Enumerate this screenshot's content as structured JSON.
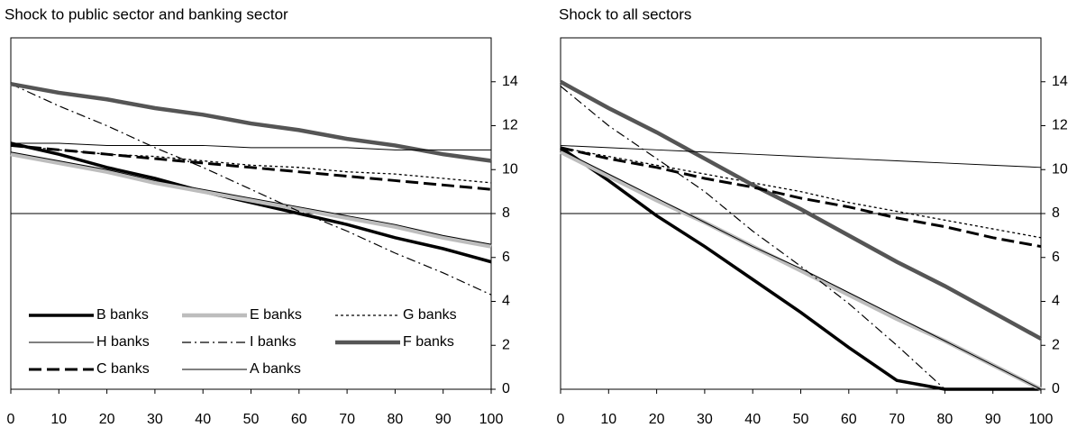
{
  "chart_data": [
    {
      "type": "line",
      "title": "Shock to public sector and banking sector",
      "x": [
        0,
        10,
        20,
        30,
        40,
        50,
        60,
        70,
        80,
        90,
        100
      ],
      "xlim": [
        0,
        100
      ],
      "xticks": [
        0,
        10,
        20,
        30,
        40,
        50,
        60,
        70,
        80,
        90,
        100
      ],
      "ylim": [
        0,
        16
      ],
      "yticks": [
        0,
        2,
        4,
        6,
        8,
        10,
        12,
        14
      ],
      "hline": 8,
      "legend": "lower left",
      "series": [
        {
          "name": "B banks",
          "color": "#000000",
          "width": 3.5,
          "dash": "",
          "values": [
            11.2,
            10.7,
            10.1,
            9.6,
            9.0,
            8.5,
            8.0,
            7.5,
            6.9,
            6.4,
            5.8
          ]
        },
        {
          "name": "E banks",
          "color": "#bdbdbd",
          "width": 4.5,
          "dash": "",
          "values": [
            10.7,
            10.3,
            9.9,
            9.4,
            9.0,
            8.6,
            8.2,
            7.8,
            7.4,
            6.9,
            6.5
          ]
        },
        {
          "name": "G banks",
          "color": "#000000",
          "width": 1.3,
          "dash": "3 3",
          "values": [
            11.1,
            10.9,
            10.7,
            10.6,
            10.4,
            10.2,
            10.1,
            9.9,
            9.8,
            9.6,
            9.4
          ]
        },
        {
          "name": "H banks",
          "color": "#000000",
          "width": 1,
          "dash": "",
          "values": [
            10.8,
            10.4,
            10.0,
            9.5,
            9.1,
            8.7,
            8.3,
            7.9,
            7.5,
            7.0,
            6.6
          ]
        },
        {
          "name": "I banks",
          "color": "#000000",
          "width": 1.2,
          "dash": "10 4 2 4",
          "values": [
            13.9,
            12.9,
            12.0,
            11.0,
            10.1,
            9.1,
            8.1,
            7.2,
            6.2,
            5.3,
            4.3
          ]
        },
        {
          "name": "F banks",
          "color": "#555555",
          "width": 4.5,
          "dash": "",
          "values": [
            13.9,
            13.5,
            13.2,
            12.8,
            12.5,
            12.1,
            11.8,
            11.4,
            11.1,
            10.7,
            10.4
          ]
        },
        {
          "name": "C banks",
          "color": "#000000",
          "width": 3,
          "dash": "14 6",
          "values": [
            11.1,
            10.9,
            10.7,
            10.5,
            10.3,
            10.1,
            9.9,
            9.7,
            9.5,
            9.3,
            9.1
          ]
        },
        {
          "name": "A banks",
          "color": "#000000",
          "width": 1,
          "dash": "",
          "values": [
            11.2,
            11.2,
            11.1,
            11.1,
            11.1,
            11.0,
            11.0,
            11.0,
            10.9,
            10.9,
            10.9
          ]
        }
      ]
    },
    {
      "type": "line",
      "title": "Shock to all sectors",
      "x": [
        0,
        10,
        20,
        30,
        40,
        50,
        60,
        70,
        80,
        90,
        100
      ],
      "xlim": [
        0,
        100
      ],
      "xticks": [
        0,
        10,
        20,
        30,
        40,
        50,
        60,
        70,
        80,
        90,
        100
      ],
      "ylim": [
        0,
        16
      ],
      "yticks": [
        0,
        2,
        4,
        6,
        8,
        10,
        12,
        14
      ],
      "hline": 8,
      "series": [
        {
          "name": "B banks",
          "color": "#000000",
          "width": 3.5,
          "dash": "",
          "values": [
            11.0,
            9.5,
            7.9,
            6.5,
            5.0,
            3.5,
            1.9,
            0.4,
            0,
            0,
            0
          ]
        },
        {
          "name": "E banks",
          "color": "#bdbdbd",
          "width": 4.5,
          "dash": "",
          "values": [
            10.8,
            9.7,
            8.6,
            7.6,
            6.5,
            5.4,
            4.3,
            3.2,
            2.2,
            1.1,
            0
          ]
        },
        {
          "name": "G banks",
          "color": "#000000",
          "width": 1.3,
          "dash": "3 3",
          "values": [
            11.0,
            10.6,
            10.2,
            9.8,
            9.4,
            9.0,
            8.5,
            8.1,
            7.7,
            7.3,
            6.9
          ]
        },
        {
          "name": "H banks",
          "color": "#000000",
          "width": 1,
          "dash": "",
          "values": [
            10.9,
            9.8,
            8.7,
            7.6,
            6.5,
            5.5,
            4.4,
            3.3,
            2.2,
            1.1,
            0
          ]
        },
        {
          "name": "I banks",
          "color": "#000000",
          "width": 1.2,
          "dash": "10 4 2 4",
          "values": [
            13.8,
            12.0,
            10.5,
            9.0,
            7.2,
            5.6,
            3.9,
            2.0,
            0,
            0,
            0
          ]
        },
        {
          "name": "F banks",
          "color": "#555555",
          "width": 4.5,
          "dash": "",
          "values": [
            14.0,
            12.8,
            11.7,
            10.5,
            9.3,
            8.2,
            7.0,
            5.8,
            4.7,
            3.5,
            2.3
          ]
        },
        {
          "name": "C banks",
          "color": "#000000",
          "width": 3,
          "dash": "14 6",
          "values": [
            11.0,
            10.5,
            10.1,
            9.6,
            9.2,
            8.7,
            8.3,
            7.8,
            7.4,
            6.9,
            6.5
          ]
        },
        {
          "name": "A banks",
          "color": "#000000",
          "width": 1,
          "dash": "",
          "values": [
            11.1,
            11.0,
            10.9,
            10.8,
            10.7,
            10.6,
            10.5,
            10.4,
            10.3,
            10.2,
            10.1
          ]
        }
      ]
    }
  ]
}
